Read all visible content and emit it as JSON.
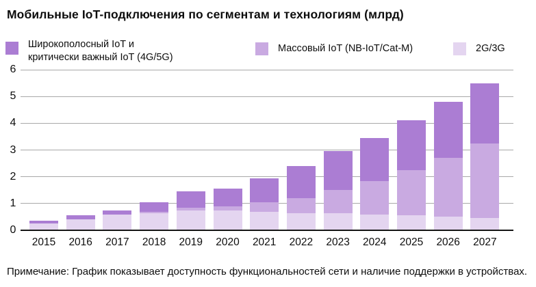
{
  "title": "Мобильные IoT-подключения по сегментам и технологиям (млрд)",
  "note": "Примечание: График показывает доступность функциональностей сети и наличие поддержки в устройствах.",
  "colors": {
    "broadband_critical": "#ab7dd3",
    "massive": "#c9aae1",
    "legacy_2g3g": "#e4d5f0",
    "gridline": "#a8a8a8",
    "axis": "#141414",
    "text": "#0d0d0d"
  },
  "legend": {
    "items": [
      {
        "line1": "Широкополосный IoT и",
        "line2": "критически важный IoT (4G/5G)",
        "color_key": "broadband_critical"
      },
      {
        "label": "Массовый IoT (NB-IoT/Cat-M)",
        "color_key": "massive"
      },
      {
        "label": "2G/3G",
        "color_key": "legacy_2g3g"
      }
    ]
  },
  "chart_data": {
    "type": "bar",
    "stacked": true,
    "title": "Мобильные IoT-подключения по сегментам и технологиям (млрд)",
    "xlabel": "",
    "ylabel": "",
    "ylim": [
      0,
      6
    ],
    "yticks": [
      0,
      1,
      2,
      3,
      4,
      5,
      6
    ],
    "grid": true,
    "legend_position": "top",
    "categories": [
      "2015",
      "2016",
      "2017",
      "2018",
      "2019",
      "2020",
      "2021",
      "2022",
      "2023",
      "2024",
      "2025",
      "2026",
      "2027"
    ],
    "series": [
      {
        "name": "Широкополосный IoT и критически важный IoT (4G/5G)",
        "color_key": "broadband_critical",
        "stack_order": "top",
        "values": [
          0.1,
          0.15,
          0.15,
          0.35,
          0.6,
          0.65,
          0.9,
          1.2,
          1.45,
          1.6,
          1.85,
          2.1,
          2.25
        ]
      },
      {
        "name": "Массовый IoT (NB-IoT/Cat-M)",
        "color_key": "massive",
        "stack_order": "middle",
        "values": [
          0,
          0,
          0,
          0.05,
          0.1,
          0.15,
          0.35,
          0.55,
          0.85,
          1.25,
          1.7,
          2.2,
          2.8
        ]
      },
      {
        "name": "2G/3G",
        "color_key": "legacy_2g3g",
        "stack_order": "bottom",
        "values": [
          0.25,
          0.4,
          0.6,
          0.65,
          0.75,
          0.75,
          0.7,
          0.65,
          0.65,
          0.6,
          0.55,
          0.5,
          0.45
        ]
      }
    ],
    "totals": [
      0.35,
      0.55,
      0.75,
      1.05,
      1.45,
      1.55,
      1.95,
      2.4,
      2.95,
      3.45,
      4.1,
      4.8,
      5.5
    ]
  }
}
